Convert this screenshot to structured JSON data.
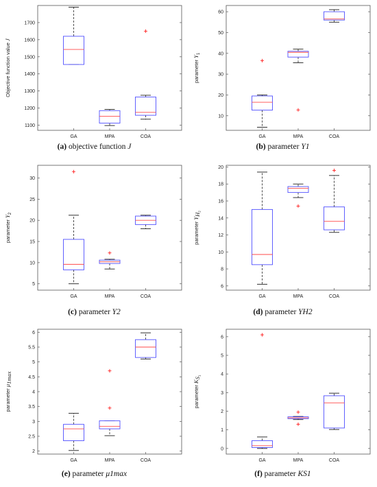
{
  "chart_data": [
    {
      "type": "box",
      "caption": {
        "letter": "(a)",
        "text": "objective function",
        "symbol": "J"
      },
      "ylabel": {
        "text": "Objective   function    value",
        "symbol": "J"
      },
      "categories": [
        "GA",
        "MPA",
        "COA"
      ],
      "ylim": [
        1070,
        1800
      ],
      "yticks": [
        1100,
        1200,
        1300,
        1400,
        1500,
        1600,
        1700
      ],
      "boxes": [
        {
          "min": 1455,
          "q1": 1455,
          "median": 1543,
          "q3": 1620,
          "max": 1790,
          "outliers": []
        },
        {
          "min": 1098,
          "q1": 1112,
          "median": 1152,
          "q3": 1185,
          "max": 1192,
          "outliers": []
        },
        {
          "min": 1135,
          "q1": 1158,
          "median": 1175,
          "q3": 1265,
          "max": 1275,
          "outliers": [
            1650
          ]
        }
      ]
    },
    {
      "type": "box",
      "caption": {
        "letter": "(b)",
        "text": "parameter",
        "symbol": "Y1"
      },
      "ylabel": {
        "text": "parameter",
        "symbol": "Y1"
      },
      "categories": [
        "GA",
        "MPA",
        "COA"
      ],
      "ylim": [
        3,
        63
      ],
      "yticks": [
        10,
        20,
        30,
        40,
        50,
        60
      ],
      "boxes": [
        {
          "min": 4.5,
          "q1": 12.7,
          "median": 16.5,
          "q3": 19.5,
          "max": 20,
          "outliers": [
            36.5
          ]
        },
        {
          "min": 35.5,
          "q1": 38.2,
          "median": 40.5,
          "q3": 41,
          "max": 42,
          "outliers": [
            12.8
          ]
        },
        {
          "min": 55,
          "q1": 56,
          "median": 56.5,
          "q3": 60,
          "max": 61,
          "outliers": []
        }
      ]
    },
    {
      "type": "box",
      "caption": {
        "letter": "(c)",
        "text": "parameter",
        "symbol": "Y2"
      },
      "ylabel": {
        "text": "parameter",
        "symbol": "Y2"
      },
      "categories": [
        "GA",
        "MPA",
        "COA"
      ],
      "ylim": [
        3.5,
        33
      ],
      "yticks": [
        5,
        10,
        15,
        20,
        25,
        30
      ],
      "boxes": [
        {
          "min": 5,
          "q1": 8.3,
          "median": 9.6,
          "q3": 15.5,
          "max": 21.2,
          "outliers": [
            31.5
          ]
        },
        {
          "min": 8.5,
          "q1": 9.8,
          "median": 10.2,
          "q3": 10.6,
          "max": 10.8,
          "outliers": [
            12.3
          ]
        },
        {
          "min": 18,
          "q1": 19,
          "median": 20,
          "q3": 21,
          "max": 21.2,
          "outliers": []
        }
      ]
    },
    {
      "type": "box",
      "caption": {
        "letter": "(d)",
        "text": "parameter",
        "symbol": "YH2"
      },
      "ylabel": {
        "text": "parameter",
        "symbol": "YH2"
      },
      "categories": [
        "GA",
        "MPA",
        "COA"
      ],
      "ylim": [
        5.5,
        20.2
      ],
      "yticks": [
        6,
        8,
        10,
        12,
        14,
        16,
        18,
        20
      ],
      "boxes": [
        {
          "min": 6.2,
          "q1": 8.5,
          "median": 9.7,
          "q3": 15,
          "max": 19.4,
          "outliers": []
        },
        {
          "min": 16.4,
          "q1": 17,
          "median": 17.5,
          "q3": 17.7,
          "max": 18,
          "outliers": [
            15.4
          ]
        },
        {
          "min": 12.3,
          "q1": 12.6,
          "median": 13.6,
          "q3": 15.3,
          "max": 19,
          "outliers": [
            19.6
          ]
        }
      ]
    },
    {
      "type": "box",
      "caption": {
        "letter": "(e)",
        "text": "parameter",
        "symbol": "μ1max"
      },
      "ylabel": {
        "text": "parameter",
        "symbol": "μ1max"
      },
      "categories": [
        "GA",
        "MPA",
        "COA"
      ],
      "ylim": [
        1.9,
        6.1
      ],
      "yticks": [
        2,
        2.5,
        3,
        3.5,
        4,
        4.5,
        5,
        5.5,
        6
      ],
      "boxes": [
        {
          "min": 2.02,
          "q1": 2.35,
          "median": 2.75,
          "q3": 2.9,
          "max": 3.27,
          "outliers": []
        },
        {
          "min": 2.52,
          "q1": 2.75,
          "median": 2.83,
          "q3": 3.02,
          "max": 3.02,
          "outliers": [
            3.45,
            4.7
          ]
        },
        {
          "min": 5.1,
          "q1": 5.15,
          "median": 5.5,
          "q3": 5.75,
          "max": 5.98,
          "outliers": []
        }
      ]
    },
    {
      "type": "box",
      "caption": {
        "letter": "(f)",
        "text": "parameter",
        "symbol": "KS1"
      },
      "ylabel": {
        "text": "parameter",
        "symbol": "KS1"
      },
      "categories": [
        "GA",
        "MPA",
        "COA"
      ],
      "ylim": [
        -0.3,
        6.4
      ],
      "yticks": [
        0,
        1,
        2,
        3,
        4,
        5,
        6
      ],
      "boxes": [
        {
          "min": 0,
          "q1": 0.05,
          "median": 0.15,
          "q3": 0.42,
          "max": 0.62,
          "outliers": [
            6.1
          ]
        },
        {
          "min": 1.55,
          "q1": 1.6,
          "median": 1.65,
          "q3": 1.7,
          "max": 1.72,
          "outliers": [
            1.3,
            1.95
          ]
        },
        {
          "min": 1.02,
          "q1": 1.1,
          "median": 2.45,
          "q3": 2.83,
          "max": 2.97,
          "outliers": []
        }
      ]
    }
  ],
  "colors": {
    "box": "#4f4fff",
    "median": "#ff4a4a",
    "outlier": "#ff2020",
    "whisker": "#000000",
    "axis": "#555555"
  }
}
